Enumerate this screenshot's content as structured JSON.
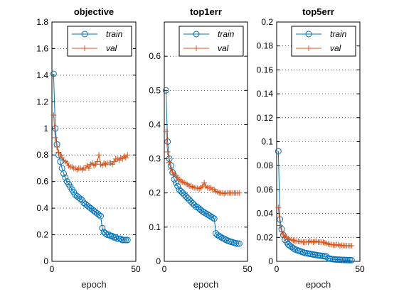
{
  "figure": {
    "background": "#ffffff"
  },
  "colors": {
    "train": "#0072bd",
    "val": "#d95319"
  },
  "chart_data": [
    {
      "type": "line",
      "title": "objective",
      "xlabel": "epoch",
      "ylabel": "",
      "xlim": [
        0,
        50
      ],
      "ylim": [
        0,
        1.8
      ],
      "xticks": [
        0,
        50
      ],
      "xtick_labels": [
        "0",
        "50"
      ],
      "yticks": [
        0,
        0.2,
        0.4,
        0.6,
        0.8,
        1,
        1.2,
        1.4,
        1.6,
        1.8
      ],
      "ytick_labels": [
        "0",
        "0.2",
        "0.4",
        "0.6",
        "0.8",
        "1",
        "1.2",
        "1.4",
        "1.6",
        "1.8"
      ],
      "grid": true,
      "legend_position": "top-right",
      "x": [
        1,
        2,
        3,
        4,
        5,
        6,
        7,
        8,
        9,
        10,
        11,
        12,
        13,
        14,
        15,
        16,
        17,
        18,
        19,
        20,
        21,
        22,
        23,
        24,
        25,
        26,
        27,
        28,
        29,
        30,
        31,
        32,
        33,
        34,
        35,
        36,
        37,
        38,
        39,
        40,
        41,
        42,
        43,
        44,
        45
      ],
      "series": [
        {
          "name": "train",
          "marker": "circle",
          "color": "#0072bd",
          "values": [
            1.41,
            1.0,
            0.88,
            0.8,
            0.75,
            0.7,
            0.66,
            0.63,
            0.6,
            0.58,
            0.56,
            0.54,
            0.52,
            0.5,
            0.49,
            0.48,
            0.47,
            0.46,
            0.44,
            0.43,
            0.42,
            0.41,
            0.4,
            0.39,
            0.38,
            0.37,
            0.36,
            0.35,
            0.34,
            0.25,
            0.22,
            0.21,
            0.2,
            0.2,
            0.19,
            0.19,
            0.18,
            0.18,
            0.17,
            0.17,
            0.17,
            0.16,
            0.16,
            0.16,
            0.16
          ]
        },
        {
          "name": "val",
          "marker": "plus",
          "color": "#d95319",
          "values": [
            1.1,
            0.93,
            0.86,
            0.82,
            0.8,
            0.78,
            0.76,
            0.75,
            0.74,
            0.72,
            0.71,
            0.71,
            0.7,
            0.7,
            0.69,
            0.7,
            0.7,
            0.69,
            0.7,
            0.7,
            0.72,
            0.7,
            0.73,
            0.74,
            0.72,
            0.73,
            0.75,
            0.8,
            0.73,
            0.72,
            0.74,
            0.73,
            0.74,
            0.74,
            0.74,
            0.73,
            0.75,
            0.77,
            0.77,
            0.76,
            0.78,
            0.77,
            0.79,
            0.78,
            0.8
          ]
        }
      ]
    },
    {
      "type": "line",
      "title": "top1err",
      "xlabel": "epoch",
      "ylabel": "",
      "xlim": [
        0,
        50
      ],
      "ylim": [
        0,
        0.7
      ],
      "xticks": [
        0,
        50
      ],
      "xtick_labels": [
        "0",
        "50"
      ],
      "yticks": [
        0,
        0.1,
        0.2,
        0.3,
        0.4,
        0.5,
        0.6
      ],
      "ytick_labels": [
        "0",
        "0.1",
        "0.2",
        "0.3",
        "0.4",
        "0.5",
        "0.6"
      ],
      "grid": true,
      "legend_position": "top-right",
      "x": [
        1,
        2,
        3,
        4,
        5,
        6,
        7,
        8,
        9,
        10,
        11,
        12,
        13,
        14,
        15,
        16,
        17,
        18,
        19,
        20,
        21,
        22,
        23,
        24,
        25,
        26,
        27,
        28,
        29,
        30,
        31,
        32,
        33,
        34,
        35,
        36,
        37,
        38,
        39,
        40,
        41,
        42,
        43,
        44,
        45
      ],
      "series": [
        {
          "name": "train",
          "marker": "circle",
          "color": "#0072bd",
          "values": [
            0.5,
            0.35,
            0.3,
            0.28,
            0.26,
            0.24,
            0.23,
            0.22,
            0.21,
            0.205,
            0.2,
            0.195,
            0.19,
            0.185,
            0.18,
            0.175,
            0.17,
            0.165,
            0.16,
            0.158,
            0.154,
            0.15,
            0.146,
            0.143,
            0.14,
            0.137,
            0.134,
            0.131,
            0.128,
            0.125,
            0.082,
            0.077,
            0.074,
            0.071,
            0.068,
            0.066,
            0.063,
            0.061,
            0.059,
            0.057,
            0.056,
            0.054,
            0.053,
            0.052,
            0.052
          ]
        },
        {
          "name": "val",
          "marker": "plus",
          "color": "#d95319",
          "values": [
            0.38,
            0.32,
            0.29,
            0.27,
            0.26,
            0.255,
            0.25,
            0.245,
            0.24,
            0.235,
            0.232,
            0.23,
            0.228,
            0.225,
            0.22,
            0.22,
            0.218,
            0.215,
            0.215,
            0.214,
            0.212,
            0.215,
            0.22,
            0.23,
            0.22,
            0.215,
            0.214,
            0.215,
            0.21,
            0.21,
            0.205,
            0.203,
            0.2,
            0.2,
            0.2,
            0.198,
            0.2,
            0.2,
            0.2,
            0.2,
            0.2,
            0.2,
            0.2,
            0.2,
            0.2
          ]
        }
      ]
    },
    {
      "type": "line",
      "title": "top5err",
      "xlabel": "epoch",
      "ylabel": "",
      "xlim": [
        0,
        50
      ],
      "ylim": [
        0,
        0.2
      ],
      "xticks": [
        0,
        50
      ],
      "xtick_labels": [
        "0",
        "50"
      ],
      "yticks": [
        0,
        0.02,
        0.04,
        0.06,
        0.08,
        0.1,
        0.12,
        0.14,
        0.16,
        0.18,
        0.2
      ],
      "ytick_labels": [
        "0",
        "0.02",
        "0.04",
        "0.06",
        "0.08",
        "0.1",
        "0.12",
        "0.14",
        "0.16",
        "0.18",
        "0.2"
      ],
      "grid": true,
      "legend_position": "top-right",
      "x": [
        1,
        2,
        3,
        4,
        5,
        6,
        7,
        8,
        9,
        10,
        11,
        12,
        13,
        14,
        15,
        16,
        17,
        18,
        19,
        20,
        21,
        22,
        23,
        24,
        25,
        26,
        27,
        28,
        29,
        30,
        31,
        32,
        33,
        34,
        35,
        36,
        37,
        38,
        39,
        40,
        41,
        42,
        43,
        44,
        45
      ],
      "series": [
        {
          "name": "train",
          "marker": "circle",
          "color": "#0072bd",
          "values": [
            0.092,
            0.035,
            0.027,
            0.022,
            0.018,
            0.016,
            0.014,
            0.013,
            0.012,
            0.011,
            0.01,
            0.0095,
            0.009,
            0.0085,
            0.008,
            0.0075,
            0.007,
            0.0068,
            0.0065,
            0.0062,
            0.006,
            0.0057,
            0.0055,
            0.0052,
            0.005,
            0.0048,
            0.0046,
            0.0044,
            0.0042,
            0.004,
            0.0025,
            0.0022,
            0.002,
            0.0018,
            0.0016,
            0.0015,
            0.0014,
            0.0013,
            0.0012,
            0.0012,
            0.0011,
            0.0011,
            0.001,
            0.001,
            0.001
          ]
        },
        {
          "name": "val",
          "marker": "plus",
          "color": "#d95319",
          "values": [
            0.045,
            0.03,
            0.025,
            0.022,
            0.021,
            0.02,
            0.019,
            0.018,
            0.018,
            0.0175,
            0.017,
            0.017,
            0.0168,
            0.0165,
            0.0165,
            0.016,
            0.016,
            0.0162,
            0.016,
            0.017,
            0.0165,
            0.016,
            0.0165,
            0.017,
            0.016,
            0.0162,
            0.016,
            0.016,
            0.0155,
            0.015,
            0.0145,
            0.014,
            0.014,
            0.0138,
            0.0135,
            0.014,
            0.0138,
            0.013,
            0.0135,
            0.0132,
            0.013,
            0.013,
            0.0132,
            0.013,
            0.013
          ]
        }
      ]
    }
  ]
}
